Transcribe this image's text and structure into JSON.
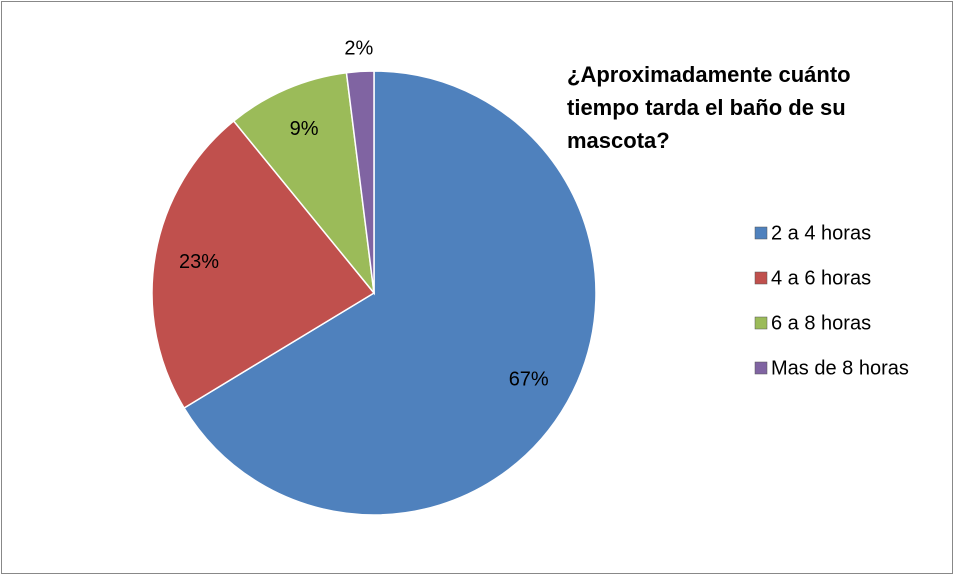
{
  "chart_data": {
    "type": "pie",
    "title": "¿Aproximadamente cuánto tiempo tarda el baño de su mascota?",
    "categories": [
      "2 a 4 horas",
      "4 a 6 horas",
      "6 a 8 horas",
      "Mas de 8 horas"
    ],
    "values": [
      67,
      23,
      9,
      2
    ],
    "value_labels": [
      "67%",
      "23%",
      "9%",
      "2%"
    ],
    "colors": [
      "#4f81bd",
      "#c0504d",
      "#9bbb59",
      "#8064a2"
    ],
    "legend": "right"
  }
}
